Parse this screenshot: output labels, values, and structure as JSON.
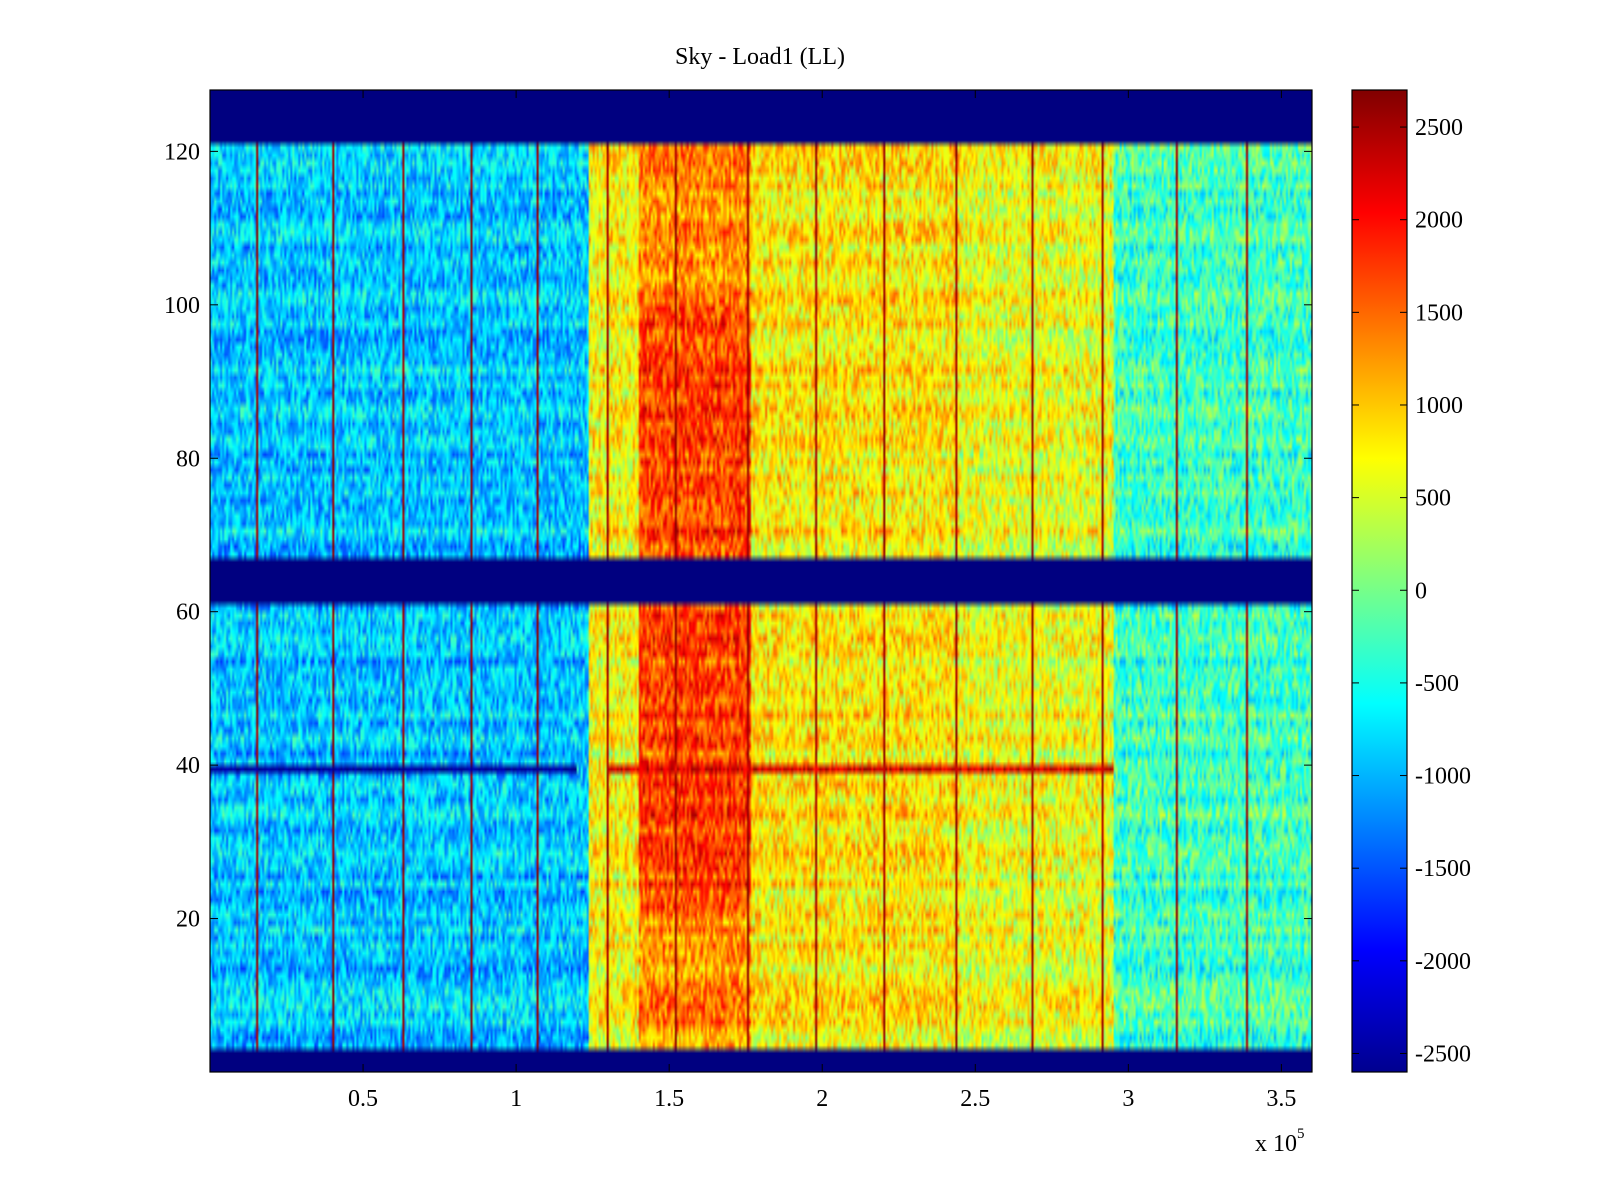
{
  "chart_data": {
    "type": "heatmap",
    "title": "Sky - Load1 (LL)",
    "xlabel": "",
    "ylabel": "",
    "x_multiplier_label": "x 10",
    "x_multiplier_exponent": "5",
    "xlim": [
      0,
      360000
    ],
    "ylim": [
      0,
      128
    ],
    "x_ticks": [
      {
        "value": 50000,
        "label": "0.5"
      },
      {
        "value": 100000,
        "label": "1"
      },
      {
        "value": 150000,
        "label": "1.5"
      },
      {
        "value": 200000,
        "label": "2"
      },
      {
        "value": 250000,
        "label": "2.5"
      },
      {
        "value": 300000,
        "label": "3"
      },
      {
        "value": 350000,
        "label": "3.5"
      }
    ],
    "y_ticks": [
      {
        "value": 20,
        "label": "20"
      },
      {
        "value": 40,
        "label": "40"
      },
      {
        "value": 60,
        "label": "60"
      },
      {
        "value": 80,
        "label": "80"
      },
      {
        "value": 100,
        "label": "100"
      },
      {
        "value": 120,
        "label": "120"
      }
    ],
    "colorbar": {
      "colormap": "jet",
      "range": [
        -2600,
        2700
      ],
      "ticks": [
        {
          "value": 2500,
          "label": "2500"
        },
        {
          "value": 2000,
          "label": "2000"
        },
        {
          "value": 1500,
          "label": "1500"
        },
        {
          "value": 1000,
          "label": "1000"
        },
        {
          "value": 500,
          "label": "500"
        },
        {
          "value": 0,
          "label": "0"
        },
        {
          "value": -500,
          "label": "-500"
        },
        {
          "value": -1000,
          "label": "-1000"
        },
        {
          "value": -1500,
          "label": "-1500"
        },
        {
          "value": -2000,
          "label": "-2000"
        },
        {
          "value": -2500,
          "label": "-2500"
        }
      ]
    },
    "masked_channel_ranges": [
      [
        0,
        3
      ],
      [
        61,
        67
      ],
      [
        121,
        128
      ]
    ],
    "masked_value": -2600,
    "time_segments": [
      {
        "x_start": 0,
        "x_end": 124000,
        "mean_value": -900
      },
      {
        "x_start": 124000,
        "x_end": 140000,
        "mean_value": 700
      },
      {
        "x_start": 140000,
        "x_end": 177000,
        "mean_value": 1500
      },
      {
        "x_start": 177000,
        "x_end": 245000,
        "mean_value": 800
      },
      {
        "x_start": 245000,
        "x_end": 295000,
        "mean_value": 600
      },
      {
        "x_start": 295000,
        "x_end": 360000,
        "mean_value": -300
      }
    ],
    "vertical_stripes_x": [
      15000,
      40000,
      63000,
      85000,
      107000,
      130000,
      152000,
      176000,
      198000,
      220000,
      244000,
      269000,
      292000,
      316000,
      339000
    ],
    "anomalous_channel": {
      "channel": 39,
      "note": "strong negative left of 1.2e5, strong positive between 1.3e5 and 2.95e5"
    }
  }
}
